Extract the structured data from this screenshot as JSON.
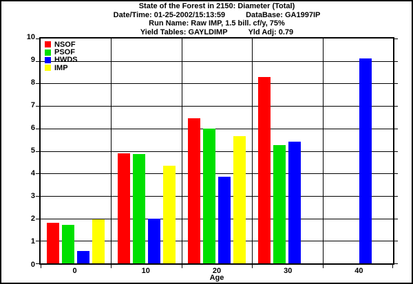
{
  "title_block": {
    "line1": "State of the Forest in 2150: Diameter (Total)",
    "line2_left": "Date/Time: 01-25-2002/15:13:59",
    "line2_right": "DataBase: GA1997IP",
    "line3": "Run Name: Raw IMP, 1.5 bill. cf/y, 75%",
    "line4_left": "Yield Tables: GAYLDIMP",
    "line4_right": "Yld Adj: 0.79"
  },
  "chart_data": {
    "type": "bar",
    "title": "State of the Forest in 2150: Diameter (Total)",
    "categories": [
      "0",
      "10",
      "20",
      "30",
      "40"
    ],
    "series": [
      {
        "name": "NSOF",
        "color": "#ff0000",
        "values": [
          1.8,
          4.9,
          6.45,
          8.3,
          0
        ]
      },
      {
        "name": "PSOF",
        "color": "#00e000",
        "values": [
          1.7,
          4.85,
          6.0,
          5.25,
          0
        ]
      },
      {
        "name": "HWDS",
        "color": "#0000ff",
        "values": [
          0.55,
          2.0,
          3.85,
          5.4,
          9.1
        ]
      },
      {
        "name": "IMP",
        "color": "#ffff00",
        "values": [
          1.95,
          4.35,
          5.65,
          0,
          0
        ]
      }
    ],
    "xlabel": "Age",
    "ylabel": "",
    "ylim": [
      0,
      10
    ],
    "yticks": [
      "0",
      "1",
      "2",
      "3",
      "4",
      "5",
      "6",
      "7",
      "8",
      "9",
      "10"
    ],
    "grid": true,
    "gridline_color": "#000000",
    "legend_position": "top-left-inside",
    "background_color": "#ffffff"
  }
}
